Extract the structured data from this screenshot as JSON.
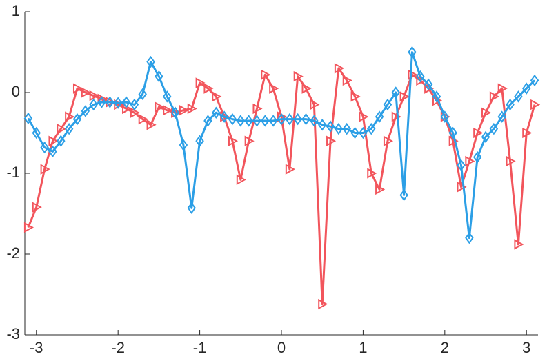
{
  "chart_data": {
    "type": "line",
    "x": [
      -3.1,
      -3.0,
      -2.9,
      -2.8,
      -2.7,
      -2.6,
      -2.5,
      -2.4,
      -2.3,
      -2.2,
      -2.1,
      -2.0,
      -1.9,
      -1.8,
      -1.7,
      -1.6,
      -1.5,
      -1.4,
      -1.3,
      -1.2,
      -1.1,
      -1.0,
      -0.9,
      -0.8,
      -0.7,
      -0.6,
      -0.5,
      -0.4,
      -0.3,
      -0.2,
      -0.1,
      0.0,
      0.1,
      0.2,
      0.3,
      0.4,
      0.5,
      0.6,
      0.7,
      0.8,
      0.9,
      1.0,
      1.1,
      1.2,
      1.3,
      1.4,
      1.5,
      1.6,
      1.7,
      1.8,
      1.9,
      2.0,
      2.1,
      2.2,
      2.3,
      2.4,
      2.5,
      2.6,
      2.7,
      2.8,
      2.9,
      3.0,
      3.1
    ],
    "series": [
      {
        "color": "#f2555c",
        "marker": "triangle-right",
        "values": [
          -1.67,
          -1.42,
          -0.95,
          -0.6,
          -0.45,
          -0.3,
          0.05,
          0.0,
          -0.04,
          -0.08,
          -0.12,
          -0.15,
          -0.2,
          -0.25,
          -0.33,
          -0.4,
          -0.18,
          -0.22,
          -0.25,
          -0.22,
          -0.2,
          0.12,
          0.05,
          -0.05,
          -0.3,
          -0.6,
          -1.08,
          -0.6,
          -0.2,
          0.22,
          0.05,
          -0.3,
          -0.95,
          0.2,
          0.05,
          -0.15,
          -2.62,
          -0.6,
          0.3,
          0.15,
          -0.05,
          -0.3,
          -1.0,
          -1.2,
          -0.6,
          -0.3,
          -0.05,
          0.22,
          0.15,
          0.05,
          -0.1,
          -0.3,
          -0.6,
          -1.17,
          -0.85,
          -0.5,
          -0.25,
          -0.05,
          0.05,
          -0.85,
          -1.88,
          -0.5,
          -0.15
        ]
      },
      {
        "color": "#2c9fe6",
        "marker": "diamond",
        "values": [
          -0.32,
          -0.5,
          -0.68,
          -0.73,
          -0.6,
          -0.45,
          -0.33,
          -0.23,
          -0.15,
          -0.12,
          -0.12,
          -0.13,
          -0.12,
          -0.15,
          -0.02,
          0.38,
          0.2,
          -0.05,
          -0.25,
          -0.65,
          -1.43,
          -0.6,
          -0.35,
          -0.25,
          -0.3,
          -0.33,
          -0.35,
          -0.35,
          -0.35,
          -0.35,
          -0.35,
          -0.33,
          -0.33,
          -0.33,
          -0.33,
          -0.35,
          -0.4,
          -0.42,
          -0.45,
          -0.45,
          -0.5,
          -0.5,
          -0.45,
          -0.3,
          -0.15,
          0.0,
          -1.27,
          0.5,
          0.2,
          0.1,
          -0.05,
          -0.3,
          -0.5,
          -0.9,
          -1.8,
          -0.8,
          -0.55,
          -0.45,
          -0.3,
          -0.15,
          -0.05,
          0.05,
          0.15
        ]
      }
    ],
    "xlim": [
      -3.1416,
      3.1416
    ],
    "ylim": [
      -3,
      1
    ],
    "xticks": [
      -3,
      -2,
      -1,
      0,
      1,
      2,
      3
    ],
    "yticks": [
      -3,
      -2,
      -1,
      0,
      1
    ]
  }
}
